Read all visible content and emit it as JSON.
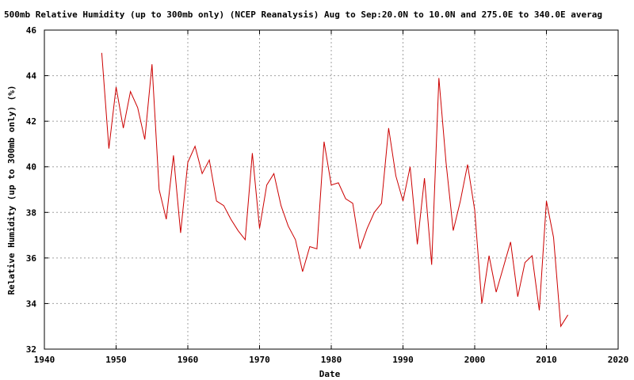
{
  "chart_data": {
    "type": "line",
    "title": "500mb Relative Humidity (up to 300mb only) (NCEP Reanalysis) Aug to Sep:20.0N to 10.0N and 275.0E to 340.0E averag",
    "xlabel": "Date",
    "ylabel": "Relative Humidity (up to 300mb only) (%)",
    "xlim": [
      1940,
      2020
    ],
    "ylim": [
      32,
      46
    ],
    "x_ticks": [
      1940,
      1950,
      1960,
      1970,
      1980,
      1990,
      2000,
      2010,
      2020
    ],
    "y_ticks": [
      32,
      34,
      36,
      38,
      40,
      42,
      44,
      46
    ],
    "x_tick_labels": [
      "1940",
      "1950",
      "1960",
      "1970",
      "1980",
      "1990",
      "2000",
      "2010",
      "2020"
    ],
    "y_tick_labels": [
      "32",
      "34",
      "36",
      "38",
      "40",
      "42",
      "44",
      "46"
    ],
    "grid": true,
    "series": [
      {
        "color": "#cc0000",
        "x": [
          1948,
          1949,
          1950,
          1951,
          1952,
          1953,
          1954,
          1955,
          1956,
          1957,
          1958,
          1959,
          1960,
          1961,
          1962,
          1963,
          1964,
          1965,
          1966,
          1967,
          1968,
          1969,
          1970,
          1971,
          1972,
          1973,
          1974,
          1975,
          1976,
          1977,
          1978,
          1979,
          1980,
          1981,
          1982,
          1983,
          1984,
          1985,
          1986,
          1987,
          1988,
          1989,
          1990,
          1991,
          1992,
          1993,
          1994,
          1995,
          1996,
          1997,
          1998,
          1999,
          2000,
          2001,
          2002,
          2003,
          2004,
          2005,
          2006,
          2007,
          2008,
          2009,
          2010,
          2011,
          2012,
          2013
        ],
        "values": [
          45.0,
          40.8,
          43.5,
          41.7,
          43.3,
          42.6,
          41.2,
          44.5,
          39.0,
          37.7,
          40.5,
          37.1,
          40.2,
          40.9,
          39.7,
          40.3,
          38.5,
          38.3,
          37.7,
          37.2,
          36.8,
          40.6,
          37.3,
          39.2,
          39.7,
          38.3,
          37.4,
          36.8,
          35.4,
          36.5,
          36.4,
          41.1,
          39.2,
          39.3,
          38.6,
          38.4,
          36.4,
          37.3,
          38.0,
          38.4,
          41.7,
          39.6,
          38.5,
          40.0,
          36.6,
          39.5,
          35.7,
          43.9,
          40.2,
          37.2,
          38.5,
          40.1,
          38.1,
          34.0,
          36.1,
          34.5,
          35.6,
          36.7,
          34.3,
          35.8,
          36.1,
          33.7,
          38.5,
          36.9,
          33.0,
          33.5
        ]
      }
    ]
  }
}
